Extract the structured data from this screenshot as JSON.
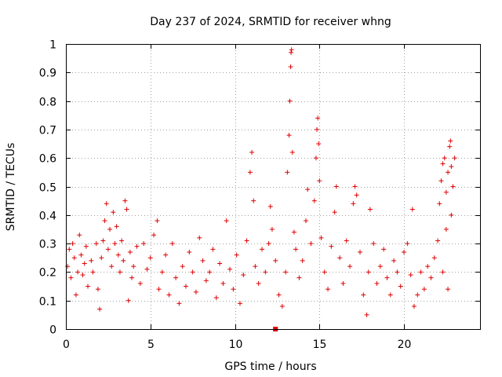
{
  "chart_data": {
    "type": "scatter",
    "title": "Day 237 of 2024, SRMTID for receiver whng",
    "xlabel": "GPS time / hours",
    "ylabel": "SRMTID / TECUs",
    "xlim": [
      0,
      24.5
    ],
    "ylim": [
      0,
      1
    ],
    "xticks": [
      "0",
      "5",
      "10",
      "15",
      "20"
    ],
    "yticks": [
      "0",
      "0.1",
      "0.2",
      "0.3",
      "0.4",
      "0.5",
      "0.6",
      "0.7",
      "0.8",
      "0.9",
      "1"
    ],
    "grid": true,
    "marker": "+",
    "color": "#e00000",
    "series": [
      {
        "name": "SRMTID",
        "points": [
          [
            0.1,
            0.22
          ],
          [
            0.2,
            0.28
          ],
          [
            0.3,
            0.18
          ],
          [
            0.4,
            0.3
          ],
          [
            0.5,
            0.25
          ],
          [
            0.6,
            0.12
          ],
          [
            0.7,
            0.2
          ],
          [
            0.8,
            0.33
          ],
          [
            0.9,
            0.26
          ],
          [
            1.0,
            0.19
          ],
          [
            1.1,
            0.23
          ],
          [
            1.2,
            0.29
          ],
          [
            1.3,
            0.15
          ],
          [
            1.5,
            0.24
          ],
          [
            1.6,
            0.2
          ],
          [
            1.8,
            0.3
          ],
          [
            1.9,
            0.14
          ],
          [
            2.0,
            0.07
          ],
          [
            2.1,
            0.25
          ],
          [
            2.2,
            0.31
          ],
          [
            2.3,
            0.38
          ],
          [
            2.4,
            0.44
          ],
          [
            2.5,
            0.28
          ],
          [
            2.6,
            0.35
          ],
          [
            2.7,
            0.22
          ],
          [
            2.8,
            0.41
          ],
          [
            2.9,
            0.3
          ],
          [
            3.0,
            0.36
          ],
          [
            3.1,
            0.26
          ],
          [
            3.2,
            0.2
          ],
          [
            3.3,
            0.31
          ],
          [
            3.4,
            0.24
          ],
          [
            3.5,
            0.45
          ],
          [
            3.6,
            0.42
          ],
          [
            3.7,
            0.1
          ],
          [
            3.8,
            0.27
          ],
          [
            3.9,
            0.18
          ],
          [
            4.0,
            0.22
          ],
          [
            4.2,
            0.29
          ],
          [
            4.4,
            0.16
          ],
          [
            4.6,
            0.3
          ],
          [
            4.8,
            0.21
          ],
          [
            5.0,
            0.25
          ],
          [
            5.2,
            0.33
          ],
          [
            5.4,
            0.38
          ],
          [
            5.5,
            0.14
          ],
          [
            5.7,
            0.2
          ],
          [
            5.9,
            0.26
          ],
          [
            6.1,
            0.12
          ],
          [
            6.3,
            0.3
          ],
          [
            6.5,
            0.18
          ],
          [
            6.7,
            0.09
          ],
          [
            6.9,
            0.22
          ],
          [
            7.1,
            0.15
          ],
          [
            7.3,
            0.27
          ],
          [
            7.5,
            0.2
          ],
          [
            7.7,
            0.13
          ],
          [
            7.9,
            0.32
          ],
          [
            8.1,
            0.24
          ],
          [
            8.3,
            0.17
          ],
          [
            8.5,
            0.2
          ],
          [
            8.7,
            0.28
          ],
          [
            8.9,
            0.11
          ],
          [
            9.1,
            0.23
          ],
          [
            9.3,
            0.16
          ],
          [
            9.5,
            0.38
          ],
          [
            9.7,
            0.21
          ],
          [
            9.9,
            0.14
          ],
          [
            10.1,
            0.26
          ],
          [
            10.3,
            0.09
          ],
          [
            10.5,
            0.19
          ],
          [
            10.7,
            0.31
          ],
          [
            10.9,
            0.55
          ],
          [
            11.0,
            0.62
          ],
          [
            11.1,
            0.45
          ],
          [
            11.2,
            0.22
          ],
          [
            11.4,
            0.16
          ],
          [
            11.6,
            0.28
          ],
          [
            11.8,
            0.2
          ],
          [
            12.0,
            0.3
          ],
          [
            12.1,
            0.43
          ],
          [
            12.2,
            0.35
          ],
          [
            12.4,
            0.24
          ],
          [
            12.6,
            0.12
          ],
          [
            12.8,
            0.08
          ],
          [
            13.0,
            0.2
          ],
          [
            13.1,
            0.55
          ],
          [
            13.2,
            0.68
          ],
          [
            13.25,
            0.8
          ],
          [
            13.3,
            0.92
          ],
          [
            13.32,
            0.97
          ],
          [
            13.35,
            0.98
          ],
          [
            13.4,
            0.62
          ],
          [
            13.5,
            0.34
          ],
          [
            13.6,
            0.28
          ],
          [
            13.8,
            0.18
          ],
          [
            14.0,
            0.24
          ],
          [
            14.2,
            0.38
          ],
          [
            14.3,
            0.49
          ],
          [
            14.5,
            0.3
          ],
          [
            14.7,
            0.45
          ],
          [
            14.8,
            0.6
          ],
          [
            14.85,
            0.7
          ],
          [
            14.9,
            0.74
          ],
          [
            14.95,
            0.65
          ],
          [
            15.0,
            0.52
          ],
          [
            15.1,
            0.32
          ],
          [
            15.3,
            0.2
          ],
          [
            15.5,
            0.14
          ],
          [
            15.7,
            0.29
          ],
          [
            15.9,
            0.41
          ],
          [
            16.0,
            0.5
          ],
          [
            16.2,
            0.25
          ],
          [
            16.4,
            0.16
          ],
          [
            16.6,
            0.31
          ],
          [
            16.8,
            0.22
          ],
          [
            17.0,
            0.44
          ],
          [
            17.1,
            0.5
          ],
          [
            17.2,
            0.47
          ],
          [
            17.4,
            0.27
          ],
          [
            17.6,
            0.12
          ],
          [
            17.8,
            0.05
          ],
          [
            17.9,
            0.2
          ],
          [
            18.0,
            0.42
          ],
          [
            18.2,
            0.3
          ],
          [
            18.4,
            0.16
          ],
          [
            18.6,
            0.22
          ],
          [
            18.8,
            0.28
          ],
          [
            19.0,
            0.18
          ],
          [
            19.2,
            0.12
          ],
          [
            19.4,
            0.24
          ],
          [
            19.6,
            0.2
          ],
          [
            19.8,
            0.15
          ],
          [
            20.0,
            0.27
          ],
          [
            20.2,
            0.3
          ],
          [
            20.4,
            0.19
          ],
          [
            20.5,
            0.42
          ],
          [
            20.6,
            0.08
          ],
          [
            20.8,
            0.12
          ],
          [
            21.0,
            0.2
          ],
          [
            21.2,
            0.14
          ],
          [
            21.4,
            0.22
          ],
          [
            21.6,
            0.18
          ],
          [
            21.8,
            0.25
          ],
          [
            22.0,
            0.31
          ],
          [
            22.1,
            0.44
          ],
          [
            22.2,
            0.52
          ],
          [
            22.3,
            0.58
          ],
          [
            22.4,
            0.6
          ],
          [
            22.5,
            0.48
          ],
          [
            22.6,
            0.55
          ],
          [
            22.7,
            0.64
          ],
          [
            22.75,
            0.66
          ],
          [
            22.8,
            0.57
          ],
          [
            22.9,
            0.5
          ],
          [
            23.0,
            0.6
          ],
          [
            22.5,
            0.35
          ],
          [
            22.8,
            0.4
          ],
          [
            22.3,
            0.2
          ],
          [
            22.6,
            0.14
          ]
        ]
      }
    ],
    "annotations": [
      {
        "type": "square",
        "x": 12.4,
        "y": 0.0
      }
    ]
  }
}
